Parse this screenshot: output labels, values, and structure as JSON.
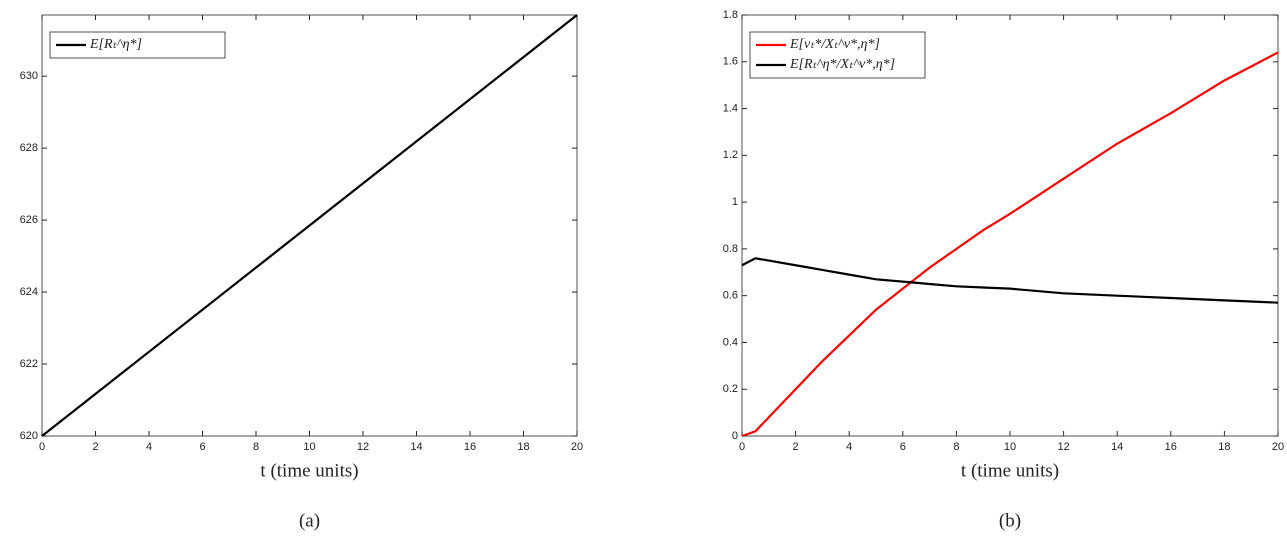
{
  "chart_data": [
    {
      "type": "line",
      "xlabel": "t (time units)",
      "caption": "(a)",
      "x": [
        0,
        20
      ],
      "series": [
        {
          "name": "E[Rₜ^η*]",
          "color": "#000000",
          "values": [
            620,
            631.7
          ]
        }
      ],
      "xlim": [
        0,
        20
      ],
      "xticks": [
        0,
        2,
        4,
        6,
        8,
        10,
        12,
        14,
        16,
        18,
        20
      ],
      "ylim": [
        620,
        631.7
      ],
      "yticks": [
        620,
        622,
        624,
        626,
        628,
        630
      ],
      "legend": "upper-left"
    },
    {
      "type": "line",
      "xlabel": "t (time units)",
      "caption": "(b)",
      "x": [
        0,
        0.5,
        1,
        2,
        3,
        4,
        5,
        6,
        7,
        8,
        9,
        10,
        12,
        14,
        16,
        18,
        20
      ],
      "series": [
        {
          "name": "E[νₜ*/Xₜ^ν*,η*]",
          "color": "#ff0000",
          "values": [
            0,
            0.02,
            0.08,
            0.2,
            0.32,
            0.43,
            0.54,
            0.63,
            0.72,
            0.8,
            0.88,
            0.95,
            1.1,
            1.25,
            1.38,
            1.52,
            1.64
          ]
        },
        {
          "name": "E[Rₜ^η*/Xₜ^ν*,η*]",
          "color": "#000000",
          "values": [
            0.73,
            0.76,
            0.75,
            0.73,
            0.71,
            0.69,
            0.67,
            0.66,
            0.65,
            0.64,
            0.635,
            0.63,
            0.61,
            0.6,
            0.59,
            0.58,
            0.57
          ]
        }
      ],
      "xlim": [
        0,
        20
      ],
      "xticks": [
        0,
        2,
        4,
        6,
        8,
        10,
        12,
        14,
        16,
        18,
        20
      ],
      "ylim": [
        0,
        1.8
      ],
      "yticks": [
        0,
        0.2,
        0.4,
        0.6,
        0.8,
        1,
        1.2,
        1.4,
        1.6,
        1.8
      ],
      "legend": "upper-left"
    }
  ]
}
